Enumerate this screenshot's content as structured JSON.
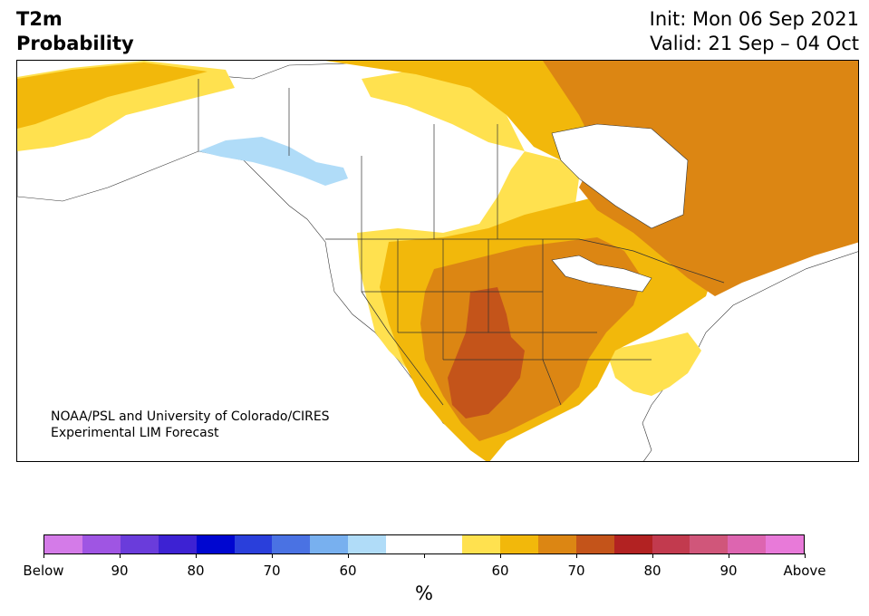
{
  "header": {
    "title_line1": "T2m",
    "title_line2": "Probability",
    "init": "Init: Mon 06 Sep 2021",
    "valid": "Valid: 21 Sep – 04 Oct"
  },
  "map": {
    "credit_line1": "NOAA/PSL and University of Colorado/CIRES",
    "credit_line2": "Experimental LIM Forecast",
    "colors": {
      "below_60": "#b0dcf8",
      "above_55": "#ffe14f",
      "above_60": "#f2b80b",
      "above_65": "#dc8613",
      "above_70": "#c4541a",
      "water": "#ffffff",
      "border": "#333333"
    }
  },
  "colorbar": {
    "unit": "%",
    "colors": [
      "#d47be8",
      "#9f55e3",
      "#6a3cdb",
      "#3d22d3",
      "#0006d0",
      "#2a3fdb",
      "#4a72e3",
      "#78b0ef",
      "#b0dcf8",
      "#ffffff",
      "#ffffff",
      "#ffe14f",
      "#f2b80b",
      "#dc8613",
      "#c4541a",
      "#b22222",
      "#c23a4e",
      "#d0567a",
      "#dd65b0",
      "#e87ad9"
    ],
    "tick_labels": [
      "Below",
      "90",
      "80",
      "70",
      "60",
      "",
      "60",
      "70",
      "80",
      "90",
      "Above"
    ]
  }
}
